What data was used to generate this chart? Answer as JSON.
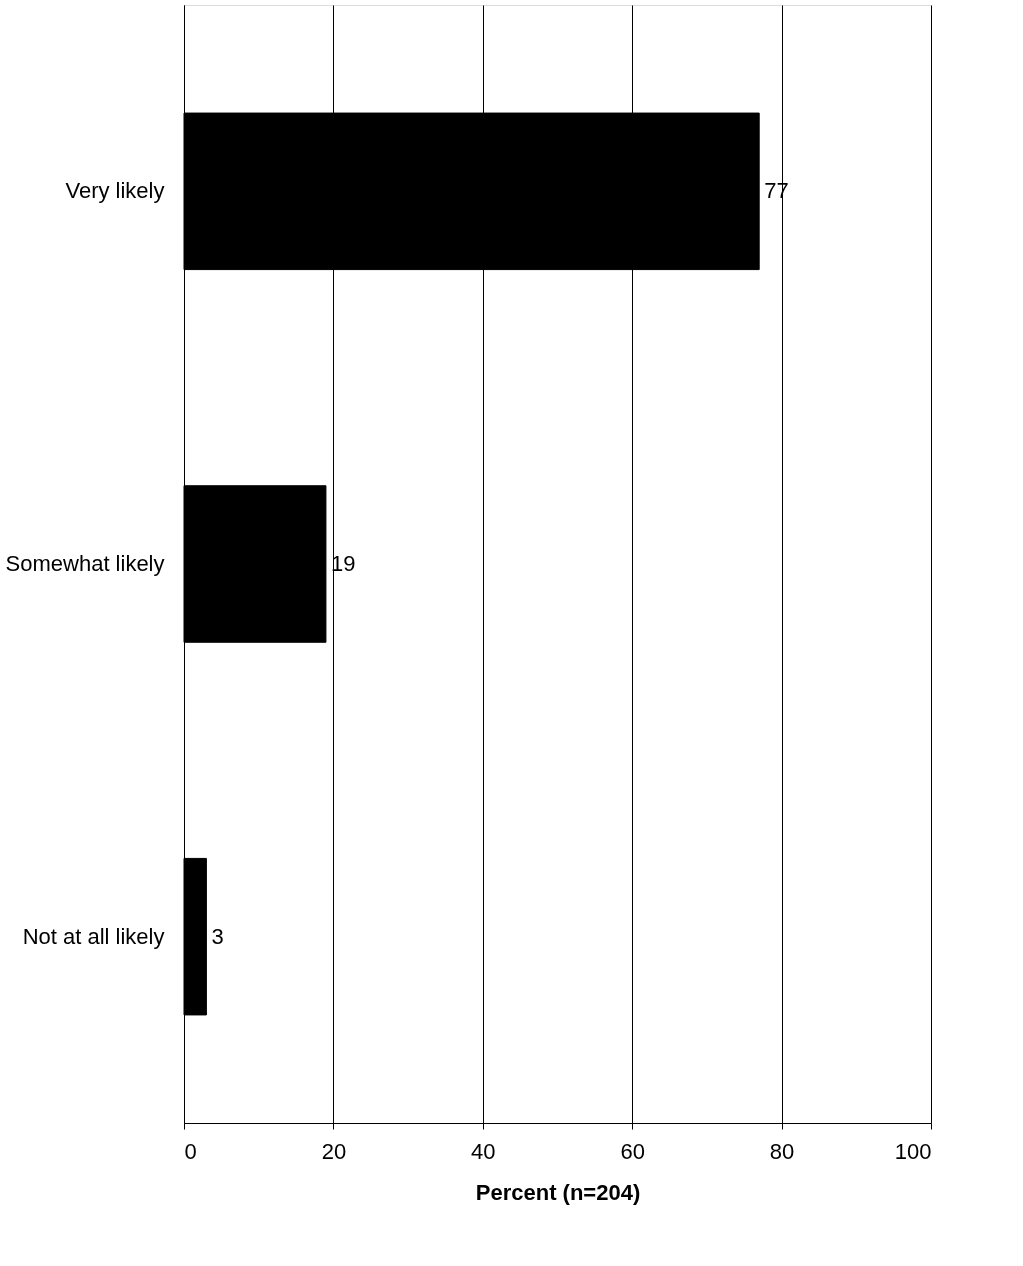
{
  "chart_data": {
    "type": "bar",
    "orientation": "horizontal",
    "xlabel": "Percent (n=204)",
    "categories": [
      "Very likely",
      "Somewhat likely",
      "Not at all likely"
    ],
    "values": [
      77,
      19,
      3
    ],
    "color": "#000000",
    "xlim": [
      0,
      100
    ],
    "xticks": [
      0,
      20,
      40,
      60,
      80,
      100
    ],
    "grid": "x",
    "data_labels": true
  }
}
